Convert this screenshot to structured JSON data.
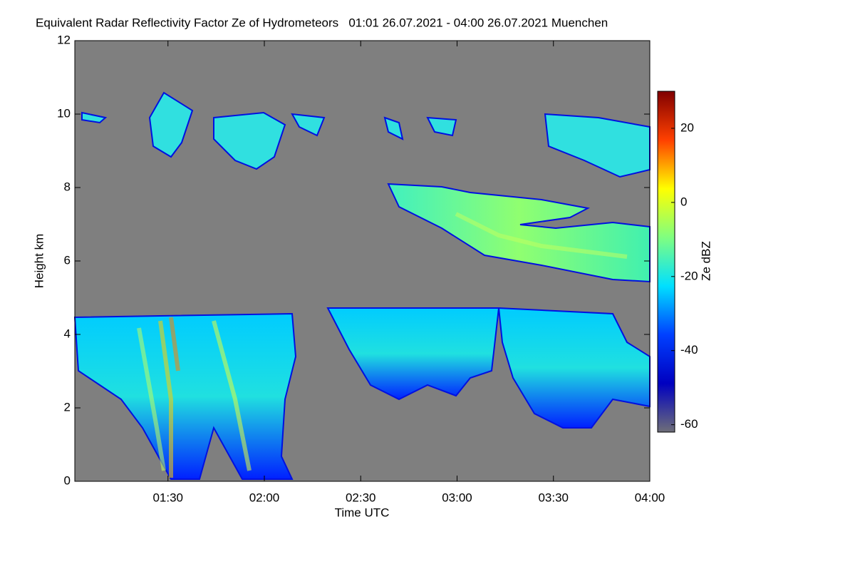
{
  "chart_data": {
    "type": "heatmap",
    "title": "Equivalent Radar Reflectivity Factor Ze of Hydrometeors   01:01 26.07.2021 - 04:00 26.07.2021 Muenchen",
    "x_label": "Time UTC",
    "y_label": "Height km",
    "colorbar_label": "Ze dBZ",
    "xlim": [
      61,
      240
    ],
    "xticks": [
      {
        "value": 90,
        "label": "01:30"
      },
      {
        "value": 120,
        "label": "02:00"
      },
      {
        "value": 150,
        "label": "02:30"
      },
      {
        "value": 180,
        "label": "03:00"
      },
      {
        "value": 210,
        "label": "03:30"
      },
      {
        "value": 240,
        "label": "04:00"
      }
    ],
    "ylim": [
      0,
      12
    ],
    "yticks": [
      0,
      2,
      4,
      6,
      8,
      10,
      12
    ],
    "clim": [
      -62,
      30
    ],
    "cticks": [
      -60,
      -40,
      -20,
      0,
      20
    ],
    "colorscale": [
      "#6e6e78",
      "#0000c0",
      "#0040ff",
      "#00e0ff",
      "#80ff80",
      "#ffff00",
      "#ff4000",
      "#800000"
    ],
    "background": "#7f7f7f"
  }
}
